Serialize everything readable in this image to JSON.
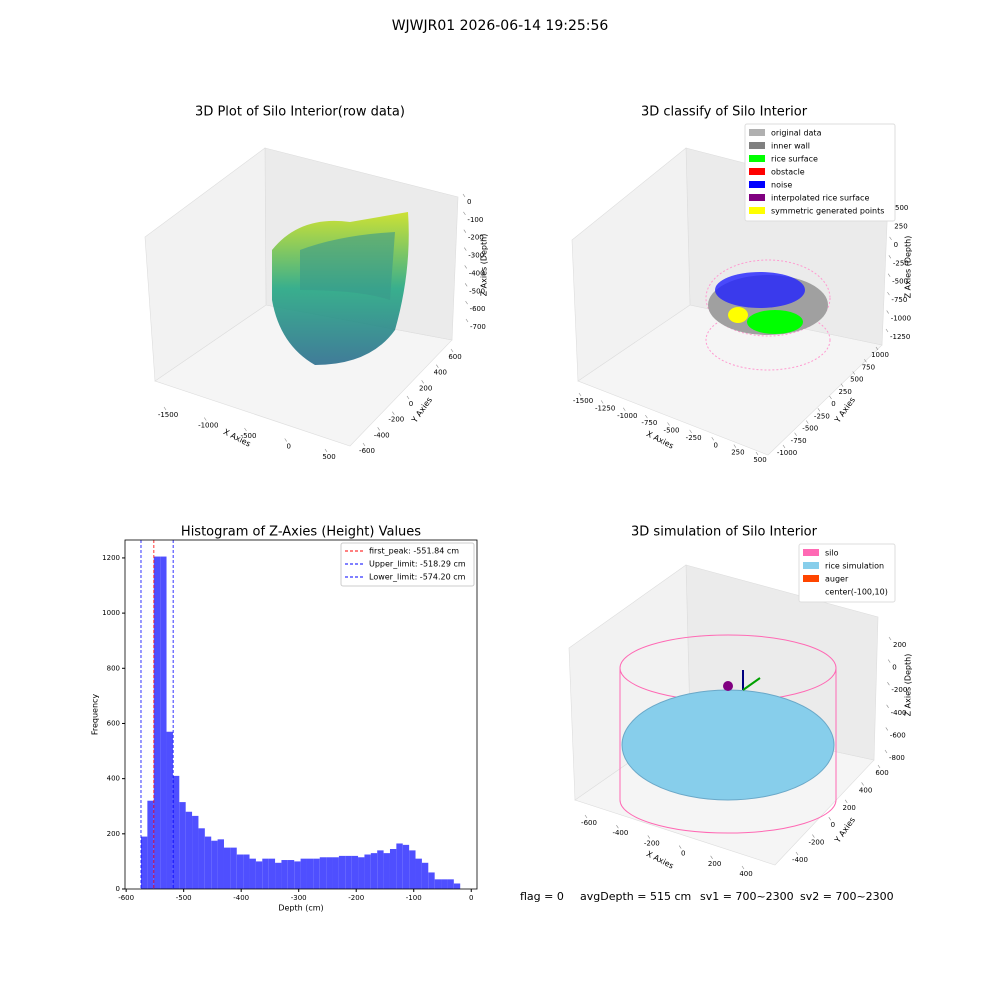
{
  "title": "WJWJR01 2026-06-14 19:25:56",
  "chart_data": [
    {
      "type": "scatter3d",
      "title": "3D Plot of Silo Interior(row data)",
      "xlabel": "X Axies",
      "ylabel": "Y Axies",
      "zlabel": "Z Axies (Depth)",
      "xticks": [
        -1500,
        -1000,
        -500,
        0,
        500
      ],
      "yticks": [
        -600,
        -400,
        -200,
        0,
        200,
        400,
        600
      ],
      "zticks": [
        0,
        -100,
        -200,
        -300,
        -400,
        -500,
        -600,
        -700
      ]
    },
    {
      "type": "scatter3d",
      "title": "3D classify of Silo Interior",
      "xlabel": "X Axies",
      "ylabel": "Y Axies",
      "zlabel": "Z Axies (Depth)",
      "xticks": [
        -1500,
        -1250,
        -1000,
        -750,
        -500,
        -250,
        0,
        250,
        500
      ],
      "yticks": [
        -1000,
        -750,
        -500,
        -250,
        0,
        250,
        500,
        750,
        1000
      ],
      "zticks": [
        500,
        250,
        0,
        -250,
        -500,
        -750,
        -1000,
        -1250
      ],
      "legend": "upper right",
      "series": [
        {
          "name": "original data",
          "color": "#b0b0b0"
        },
        {
          "name": "inner wall",
          "color": "#808080"
        },
        {
          "name": "rice surface",
          "color": "#00ff00"
        },
        {
          "name": "obstacle",
          "color": "#ff0000"
        },
        {
          "name": "noise",
          "color": "#0000ff"
        },
        {
          "name": "interpolated rice surface",
          "color": "#800080"
        },
        {
          "name": "symmetric generated points",
          "color": "#ffff00"
        }
      ]
    },
    {
      "type": "histogram",
      "title": "Histogram of Z-Axies (Height) Values",
      "xlabel": "Depth (cm)",
      "ylabel": "Frequency",
      "color": "#4f4fff",
      "bins": [
        -574.2,
        -563.1,
        -552.0,
        -540.9,
        -529.8,
        -518.7,
        -507.6,
        -496.5,
        -485.4,
        -474.3,
        -463.2,
        -452.1,
        -441.0,
        -429.9,
        -418.8,
        -407.7,
        -396.6,
        -385.5,
        -374.4,
        -363.3,
        -352.2,
        -341.1,
        -330.0,
        -318.9,
        -307.8,
        -296.7,
        -285.6,
        -274.5,
        -263.4,
        -252.3,
        -241.2,
        -230.1,
        -219.0,
        -207.9,
        -196.8,
        -185.7,
        -174.6,
        -163.5,
        -152.4,
        -141.3,
        -130.2,
        -119.1,
        -108.0,
        -96.9,
        -85.8,
        -74.7,
        -63.6,
        -52.5,
        -41.4,
        -30.3,
        -19.2
      ],
      "values": [
        190,
        320,
        1205,
        1205,
        570,
        410,
        315,
        280,
        265,
        220,
        190,
        175,
        180,
        150,
        150,
        125,
        125,
        110,
        100,
        110,
        110,
        95,
        105,
        105,
        100,
        110,
        110,
        110,
        115,
        115,
        115,
        120,
        120,
        120,
        115,
        125,
        130,
        140,
        130,
        145,
        165,
        160,
        140,
        110,
        95,
        60,
        35,
        35,
        35,
        20
      ],
      "xlim": [
        -602,
        10
      ],
      "ylim": [
        0,
        1265
      ],
      "xticks": [
        -600,
        -500,
        -400,
        -300,
        -200,
        -100,
        0
      ],
      "yticks": [
        0,
        200,
        400,
        600,
        800,
        1000,
        1200
      ],
      "legend": "upper right",
      "lines": [
        {
          "name": "first_peak: -551.84 cm",
          "value": -551.84,
          "color": "#ff0000"
        },
        {
          "name": "Upper_limit: -518.29 cm",
          "value": -518.29,
          "color": "#0000ff"
        },
        {
          "name": "Lower_limit: -574.20 cm",
          "value": -574.2,
          "color": "#0000ff"
        }
      ]
    },
    {
      "type": "surface3d",
      "title": "3D simulation of Silo Interior",
      "xlabel": "X Axies",
      "ylabel": "Y Axies",
      "zlabel": "Z Axies (Depth)",
      "xticks": [
        -600,
        -400,
        -200,
        0,
        200,
        400
      ],
      "yticks": [
        -400,
        -200,
        0,
        200,
        400,
        600
      ],
      "zticks": [
        200,
        0,
        -200,
        -400,
        -600,
        -800
      ],
      "legend": "upper right",
      "series": [
        {
          "name": "silo",
          "color": "#ff69b4"
        },
        {
          "name": "rice simulation",
          "color": "#87ceeb"
        },
        {
          "name": "auger",
          "color": "#ff4500"
        },
        {
          "name": "center(-100,10)"
        }
      ]
    }
  ],
  "footer": [
    "flag = 0",
    "avgDepth = 515 cm",
    "sv1 = 700~2300",
    "sv2 = 700~2300"
  ]
}
